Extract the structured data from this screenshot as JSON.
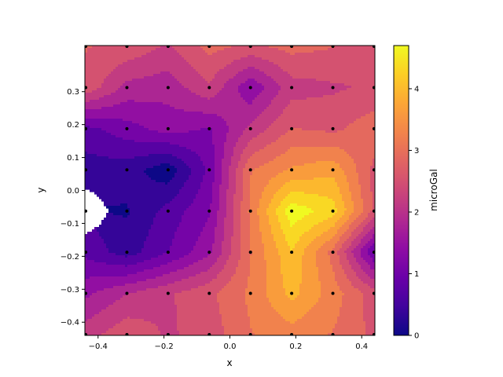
{
  "chart_data": {
    "type": "contour",
    "xlabel": "x",
    "ylabel": "y",
    "xlim": [
      -0.44,
      0.44
    ],
    "ylim": [
      -0.44,
      0.44
    ],
    "x_ticks": [
      -0.4,
      -0.2,
      0.0,
      0.2,
      0.4
    ],
    "x_tick_labels": [
      "−0.4",
      "−0.2",
      "0.0",
      "0.2",
      "0.4"
    ],
    "y_ticks": [
      -0.4,
      -0.3,
      -0.2,
      -0.1,
      0.0,
      0.1,
      0.2,
      0.3
    ],
    "y_tick_labels": [
      "−0.4",
      "−0.3",
      "−0.2",
      "−0.1",
      "0.0",
      "0.1",
      "0.2",
      "0.3"
    ],
    "grid": false,
    "colormap": "plasma",
    "colorbar": {
      "label": "microGal",
      "range": [
        0,
        4.7
      ],
      "ticks": [
        0,
        1,
        2,
        3,
        4
      ],
      "tick_labels": [
        "0",
        "1",
        "2",
        "3",
        "4"
      ]
    },
    "grid_x": [
      -0.4375,
      -0.3125,
      -0.1875,
      -0.0625,
      0.0625,
      0.1875,
      0.3125,
      0.4375
    ],
    "grid_y": [
      -0.4375,
      -0.3125,
      -0.1875,
      -0.0625,
      0.0625,
      0.1875,
      0.3125,
      0.4375
    ],
    "values": [
      [
        2.2,
        2.6,
        2.3,
        2.5,
        3.0,
        3.2,
        3.0,
        2.6
      ],
      [
        1.6,
        2.0,
        2.3,
        2.6,
        3.1,
        3.8,
        3.2,
        2.5
      ],
      [
        0.9,
        0.5,
        1.0,
        1.6,
        3.0,
        4.0,
        2.9,
        1.0
      ],
      [
        null,
        0.3,
        0.8,
        1.3,
        3.1,
        4.6,
        4.2,
        2.6
      ],
      [
        0.5,
        0.5,
        0.1,
        1.1,
        3.0,
        3.4,
        3.6,
        2.6
      ],
      [
        0.9,
        1.2,
        1.5,
        1.3,
        2.1,
        2.7,
        2.6,
        2.9
      ],
      [
        2.6,
        1.9,
        1.8,
        2.3,
        1.4,
        2.2,
        2.3,
        2.4
      ],
      [
        2.7,
        2.6,
        2.3,
        2.8,
        2.6,
        2.8,
        2.7,
        2.5
      ]
    ]
  }
}
